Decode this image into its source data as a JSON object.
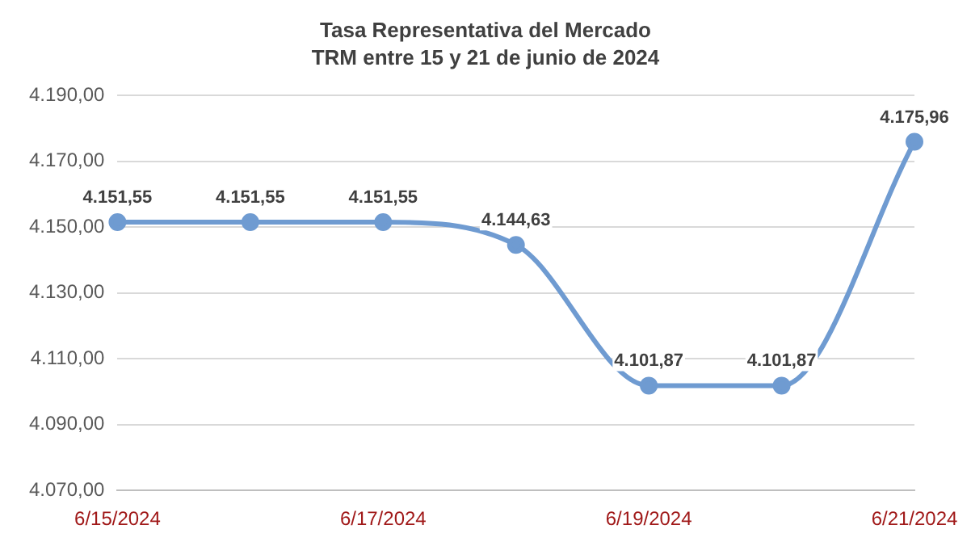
{
  "chart_data": {
    "type": "line",
    "title": "Tasa Representativa del Mercado",
    "subtitle": "TRM entre 15 y 21 de junio de 2024",
    "categories": [
      "6/15/2024",
      null,
      "6/17/2024",
      null,
      "6/19/2024",
      null,
      "6/21/2024"
    ],
    "series": [
      {
        "color": "#6f9bd1",
        "values": [
          4151.55,
          4151.55,
          4151.55,
          4144.63,
          4101.87,
          4101.87,
          4175.96
        ],
        "value_labels": [
          "4.151,55",
          "4.151,55",
          "4.151,55",
          "4.144,63",
          "4.101,87",
          "4.101,87",
          "4.175,96"
        ]
      }
    ],
    "ylim": [
      4070,
      4190
    ],
    "yticks": [
      {
        "value": 4070,
        "label": "4.070,00"
      },
      {
        "value": 4090,
        "label": "4.090,00"
      },
      {
        "value": 4110,
        "label": "4.110,00"
      },
      {
        "value": 4130,
        "label": "4.130,00"
      },
      {
        "value": 4150,
        "label": "4.150,00"
      },
      {
        "value": 4170,
        "label": "4.170,00"
      },
      {
        "value": 4190,
        "label": "4.190,00"
      }
    ],
    "grid": "y",
    "legend": false,
    "marker": "circle",
    "line_style": "solid"
  }
}
